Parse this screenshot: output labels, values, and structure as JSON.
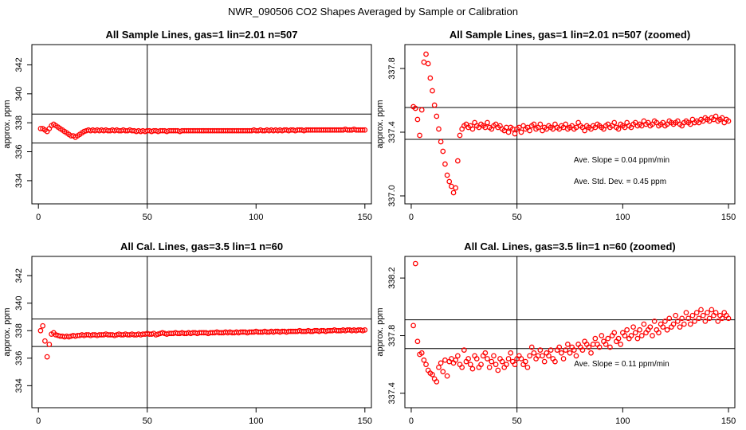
{
  "figure_title": "NWR_090506  CO2 Shapes Averaged by Sample or Calibration",
  "colors": {
    "points": "#ff0000",
    "lines": "#000000",
    "frame": "#000000"
  },
  "chart_data": [
    {
      "type": "scatter",
      "title": "All Sample Lines, gas=1 lin=2.01 n=507",
      "xlabel": "",
      "ylabel": "approx. ppm",
      "xlim": [
        -3,
        153
      ],
      "ylim": [
        332.4,
        343.4
      ],
      "xticks": [
        0,
        50,
        100,
        150
      ],
      "yticks": [
        334,
        336,
        338,
        340,
        342
      ],
      "hlines": [
        336.6,
        338.6
      ],
      "vlines": [
        50
      ],
      "grid": false,
      "annotations": [],
      "x": [
        1,
        2,
        3,
        4,
        5,
        6,
        7,
        8,
        9,
        10,
        11,
        12,
        13,
        14,
        15,
        16,
        17,
        18,
        19,
        20,
        21,
        22,
        23,
        24,
        25,
        26,
        27,
        28,
        29,
        30,
        31,
        32,
        33,
        34,
        35,
        36,
        37,
        38,
        39,
        40,
        41,
        42,
        43,
        44,
        45,
        46,
        47,
        48,
        49,
        50,
        51,
        52,
        53,
        54,
        55,
        56,
        57,
        58,
        59,
        60,
        61,
        62,
        63,
        64,
        65,
        66,
        67,
        68,
        69,
        70,
        71,
        72,
        73,
        74,
        75,
        76,
        77,
        78,
        79,
        80,
        81,
        82,
        83,
        84,
        85,
        86,
        87,
        88,
        89,
        90,
        91,
        92,
        93,
        94,
        95,
        96,
        97,
        98,
        99,
        100,
        101,
        102,
        103,
        104,
        105,
        106,
        107,
        108,
        109,
        110,
        111,
        112,
        113,
        114,
        115,
        116,
        117,
        118,
        119,
        120,
        121,
        122,
        123,
        124,
        125,
        126,
        127,
        128,
        129,
        130,
        131,
        132,
        133,
        134,
        135,
        136,
        137,
        138,
        139,
        140,
        141,
        142,
        143,
        144,
        145,
        146,
        147,
        148,
        149,
        150
      ],
      "y": [
        337.6,
        337.6,
        337.5,
        337.4,
        337.6,
        337.8,
        337.9,
        337.8,
        337.7,
        337.6,
        337.5,
        337.4,
        337.3,
        337.2,
        337.1,
        337.1,
        337.0,
        337.1,
        337.2,
        337.3,
        337.4,
        337.45,
        337.5,
        337.45,
        337.5,
        337.45,
        337.5,
        337.45,
        337.5,
        337.45,
        337.5,
        337.45,
        337.45,
        337.5,
        337.45,
        337.5,
        337.45,
        337.45,
        337.5,
        337.45,
        337.45,
        337.5,
        337.45,
        337.45,
        337.4,
        337.45,
        337.4,
        337.45,
        337.4,
        337.45,
        337.45,
        337.4,
        337.45,
        337.45,
        337.4,
        337.45,
        337.45,
        337.45,
        337.4,
        337.45,
        337.45,
        337.45,
        337.45,
        337.45,
        337.4,
        337.45,
        337.45,
        337.45,
        337.45,
        337.45,
        337.45,
        337.45,
        337.45,
        337.45,
        337.45,
        337.45,
        337.45,
        337.45,
        337.45,
        337.45,
        337.45,
        337.45,
        337.45,
        337.45,
        337.45,
        337.45,
        337.45,
        337.45,
        337.45,
        337.45,
        337.45,
        337.45,
        337.45,
        337.45,
        337.45,
        337.45,
        337.45,
        337.45,
        337.5,
        337.45,
        337.45,
        337.5,
        337.45,
        337.45,
        337.5,
        337.45,
        337.5,
        337.45,
        337.5,
        337.45,
        337.5,
        337.45,
        337.5,
        337.5,
        337.45,
        337.5,
        337.5,
        337.45,
        337.5,
        337.5,
        337.5,
        337.45,
        337.5,
        337.5,
        337.5,
        337.5,
        337.5,
        337.5,
        337.5,
        337.5,
        337.5,
        337.5,
        337.5,
        337.5,
        337.5,
        337.5,
        337.5,
        337.5,
        337.5,
        337.5,
        337.55,
        337.5,
        337.5,
        337.5,
        337.55,
        337.5,
        337.5,
        337.5,
        337.5,
        337.5
      ]
    },
    {
      "type": "scatter",
      "title": "All Sample Lines, gas=1 lin=2.01 n=507 (zoomed)",
      "xlabel": "",
      "ylabel": "approx. ppm",
      "xlim": [
        -3,
        153
      ],
      "ylim": [
        336.95,
        337.95
      ],
      "xticks": [
        0,
        50,
        100,
        150
      ],
      "yticks": [
        337.0,
        337.4,
        337.8
      ],
      "yticklabels": [
        "337.0",
        "337.4",
        "337.8"
      ],
      "hlines": [
        337.355,
        337.555
      ],
      "vlines": [
        50
      ],
      "grid": false,
      "annotations": [
        "Ave. Slope =  0.04  ppm/min",
        "Ave. Std. Dev. =  0.45  ppm"
      ],
      "x": [
        1,
        2,
        3,
        4,
        5,
        6,
        7,
        8,
        9,
        10,
        11,
        12,
        13,
        14,
        15,
        16,
        17,
        18,
        19,
        20,
        21,
        22,
        23,
        24,
        25,
        26,
        27,
        28,
        29,
        30,
        31,
        32,
        33,
        34,
        35,
        36,
        37,
        38,
        39,
        40,
        41,
        42,
        43,
        44,
        45,
        46,
        47,
        48,
        49,
        50,
        51,
        52,
        53,
        54,
        55,
        56,
        57,
        58,
        59,
        60,
        61,
        62,
        63,
        64,
        65,
        66,
        67,
        68,
        69,
        70,
        71,
        72,
        73,
        74,
        75,
        76,
        77,
        78,
        79,
        80,
        81,
        82,
        83,
        84,
        85,
        86,
        87,
        88,
        89,
        90,
        91,
        92,
        93,
        94,
        95,
        96,
        97,
        98,
        99,
        100,
        101,
        102,
        103,
        104,
        105,
        106,
        107,
        108,
        109,
        110,
        111,
        112,
        113,
        114,
        115,
        116,
        117,
        118,
        119,
        120,
        121,
        122,
        123,
        124,
        125,
        126,
        127,
        128,
        129,
        130,
        131,
        132,
        133,
        134,
        135,
        136,
        137,
        138,
        139,
        140,
        141,
        142,
        143,
        144,
        145,
        146,
        147,
        148,
        149,
        150
      ],
      "y": [
        337.56,
        337.55,
        337.48,
        337.38,
        337.54,
        337.84,
        337.89,
        337.83,
        337.74,
        337.66,
        337.57,
        337.5,
        337.42,
        337.34,
        337.28,
        337.2,
        337.13,
        337.09,
        337.06,
        337.02,
        337.05,
        337.22,
        337.38,
        337.42,
        337.44,
        337.45,
        337.43,
        337.44,
        337.42,
        337.46,
        337.44,
        337.43,
        337.45,
        337.44,
        337.43,
        337.46,
        337.43,
        337.42,
        337.44,
        337.45,
        337.43,
        337.44,
        337.42,
        337.41,
        337.43,
        337.4,
        337.43,
        337.42,
        337.39,
        337.42,
        337.43,
        337.4,
        337.44,
        337.42,
        337.43,
        337.41,
        337.44,
        337.45,
        337.42,
        337.43,
        337.45,
        337.41,
        337.43,
        337.42,
        337.44,
        337.43,
        337.42,
        337.45,
        337.43,
        337.42,
        337.44,
        337.43,
        337.45,
        337.42,
        337.43,
        337.44,
        337.42,
        337.43,
        337.46,
        337.44,
        337.43,
        337.41,
        337.44,
        337.43,
        337.42,
        337.44,
        337.43,
        337.45,
        337.44,
        337.43,
        337.42,
        337.44,
        337.45,
        337.43,
        337.44,
        337.46,
        337.43,
        337.42,
        337.45,
        337.44,
        337.43,
        337.46,
        337.44,
        337.43,
        337.45,
        337.46,
        337.44,
        337.45,
        337.44,
        337.47,
        337.45,
        337.46,
        337.44,
        337.45,
        337.47,
        337.46,
        337.44,
        337.45,
        337.46,
        337.44,
        337.45,
        337.47,
        337.46,
        337.45,
        337.46,
        337.47,
        337.45,
        337.44,
        337.46,
        337.47,
        337.46,
        337.45,
        337.48,
        337.46,
        337.47,
        337.46,
        337.48,
        337.47,
        337.49,
        337.48,
        337.47,
        337.49,
        337.48,
        337.5,
        337.47,
        337.48,
        337.49,
        337.46,
        337.48,
        337.47
      ]
    },
    {
      "type": "scatter",
      "title": "All Cal. Lines, gas=3.5 lin=1 n=60",
      "xlabel": "",
      "ylabel": "approx. ppm",
      "xlim": [
        -3,
        153
      ],
      "ylim": [
        332.4,
        343.4
      ],
      "xticks": [
        0,
        50,
        100,
        150
      ],
      "yticks": [
        334,
        336,
        338,
        340,
        342
      ],
      "hlines": [
        336.85,
        338.85
      ],
      "vlines": [
        50
      ],
      "grid": false,
      "annotations": [],
      "x": [
        1,
        2,
        3,
        4,
        5,
        6,
        7,
        8,
        9,
        10,
        11,
        12,
        13,
        14,
        15,
        16,
        17,
        18,
        19,
        20,
        21,
        22,
        23,
        24,
        25,
        26,
        27,
        28,
        29,
        30,
        31,
        32,
        33,
        34,
        35,
        36,
        37,
        38,
        39,
        40,
        41,
        42,
        43,
        44,
        45,
        46,
        47,
        48,
        49,
        50,
        51,
        52,
        53,
        54,
        55,
        56,
        57,
        58,
        59,
        60,
        61,
        62,
        63,
        64,
        65,
        66,
        67,
        68,
        69,
        70,
        71,
        72,
        73,
        74,
        75,
        76,
        77,
        78,
        79,
        80,
        81,
        82,
        83,
        84,
        85,
        86,
        87,
        88,
        89,
        90,
        91,
        92,
        93,
        94,
        95,
        96,
        97,
        98,
        99,
        100,
        101,
        102,
        103,
        104,
        105,
        106,
        107,
        108,
        109,
        110,
        111,
        112,
        113,
        114,
        115,
        116,
        117,
        118,
        119,
        120,
        121,
        122,
        123,
        124,
        125,
        126,
        127,
        128,
        129,
        130,
        131,
        132,
        133,
        134,
        135,
        136,
        137,
        138,
        139,
        140,
        141,
        142,
        143,
        144,
        145,
        146,
        147,
        148,
        149,
        150
      ],
      "y": [
        338.0,
        338.35,
        337.25,
        336.1,
        337.0,
        337.75,
        337.85,
        337.7,
        337.65,
        337.6,
        337.6,
        337.55,
        337.6,
        337.55,
        337.6,
        337.65,
        337.6,
        337.65,
        337.65,
        337.7,
        337.65,
        337.7,
        337.7,
        337.65,
        337.7,
        337.7,
        337.65,
        337.7,
        337.7,
        337.7,
        337.75,
        337.7,
        337.7,
        337.7,
        337.65,
        337.7,
        337.75,
        337.7,
        337.7,
        337.75,
        337.7,
        337.7,
        337.75,
        337.7,
        337.7,
        337.75,
        337.7,
        337.75,
        337.75,
        337.8,
        337.75,
        337.75,
        337.8,
        337.7,
        337.75,
        337.8,
        337.85,
        337.8,
        337.75,
        337.8,
        337.8,
        337.8,
        337.85,
        337.8,
        337.8,
        337.85,
        337.8,
        337.8,
        337.85,
        337.8,
        337.85,
        337.85,
        337.8,
        337.85,
        337.85,
        337.85,
        337.85,
        337.8,
        337.85,
        337.85,
        337.85,
        337.9,
        337.85,
        337.85,
        337.85,
        337.9,
        337.85,
        337.9,
        337.85,
        337.85,
        337.9,
        337.85,
        337.9,
        337.9,
        337.9,
        337.85,
        337.9,
        337.9,
        337.9,
        337.95,
        337.9,
        337.9,
        337.9,
        337.95,
        337.9,
        337.9,
        337.95,
        337.9,
        337.95,
        337.95,
        337.9,
        337.95,
        337.95,
        337.9,
        337.95,
        337.95,
        337.95,
        337.95,
        337.95,
        338.0,
        337.95,
        337.95,
        337.95,
        338.0,
        337.95,
        337.95,
        338.0,
        338.0,
        337.95,
        338.0,
        338.0,
        337.95,
        338.0,
        338.0,
        338.0,
        338.05,
        338.0,
        338.0,
        338.0,
        338.05,
        338.0,
        338.05,
        338.05,
        338.0,
        338.05,
        338.0,
        338.05,
        338.05,
        338.0,
        338.05
      ]
    },
    {
      "type": "scatter",
      "title": "All Cal. Lines, gas=3.5 lin=1 n=60 (zoomed)",
      "xlabel": "",
      "ylabel": "approx. ppm",
      "xlim": [
        -3,
        153
      ],
      "ylim": [
        337.3,
        338.35
      ],
      "xticks": [
        0,
        50,
        100,
        150
      ],
      "yticks": [
        337.4,
        337.8,
        338.2
      ],
      "yticklabels": [
        "337.4",
        "337.8",
        "338.2"
      ],
      "hlines": [
        337.71,
        337.91
      ],
      "vlines": [
        50
      ],
      "grid": false,
      "annotations": [
        "Ave. Slope =  0.11  ppm/min"
      ],
      "x": [
        1,
        2,
        3,
        4,
        5,
        6,
        7,
        8,
        9,
        10,
        11,
        12,
        13,
        14,
        15,
        16,
        17,
        18,
        19,
        20,
        21,
        22,
        23,
        24,
        25,
        26,
        27,
        28,
        29,
        30,
        31,
        32,
        33,
        34,
        35,
        36,
        37,
        38,
        39,
        40,
        41,
        42,
        43,
        44,
        45,
        46,
        47,
        48,
        49,
        50,
        51,
        52,
        53,
        54,
        55,
        56,
        57,
        58,
        59,
        60,
        61,
        62,
        63,
        64,
        65,
        66,
        67,
        68,
        69,
        70,
        71,
        72,
        73,
        74,
        75,
        76,
        77,
        78,
        79,
        80,
        81,
        82,
        83,
        84,
        85,
        86,
        87,
        88,
        89,
        90,
        91,
        92,
        93,
        94,
        95,
        96,
        97,
        98,
        99,
        100,
        101,
        102,
        103,
        104,
        105,
        106,
        107,
        108,
        109,
        110,
        111,
        112,
        113,
        114,
        115,
        116,
        117,
        118,
        119,
        120,
        121,
        122,
        123,
        124,
        125,
        126,
        127,
        128,
        129,
        130,
        131,
        132,
        133,
        134,
        135,
        136,
        137,
        138,
        139,
        140,
        141,
        142,
        143,
        144,
        145,
        146,
        147,
        148,
        149,
        150
      ],
      "y": [
        337.87,
        338.3,
        337.76,
        337.67,
        337.68,
        337.63,
        337.6,
        337.56,
        337.54,
        337.53,
        337.5,
        337.48,
        337.58,
        337.61,
        337.55,
        337.63,
        337.52,
        337.62,
        337.64,
        337.61,
        337.63,
        337.66,
        337.6,
        337.58,
        337.7,
        337.62,
        337.64,
        337.6,
        337.57,
        337.66,
        337.64,
        337.58,
        337.6,
        337.66,
        337.68,
        337.64,
        337.58,
        337.62,
        337.66,
        337.6,
        337.56,
        337.64,
        337.62,
        337.58,
        337.6,
        337.64,
        337.68,
        337.62,
        337.6,
        337.64,
        337.66,
        337.64,
        337.6,
        337.62,
        337.58,
        337.66,
        337.72,
        337.68,
        337.64,
        337.66,
        337.7,
        337.66,
        337.62,
        337.68,
        337.66,
        337.7,
        337.64,
        337.62,
        337.7,
        337.72,
        337.68,
        337.64,
        337.7,
        337.74,
        337.68,
        337.72,
        337.7,
        337.66,
        337.74,
        337.72,
        337.7,
        337.76,
        337.74,
        337.72,
        337.68,
        337.74,
        337.78,
        337.74,
        337.72,
        337.8,
        337.76,
        337.74,
        337.78,
        337.72,
        337.8,
        337.82,
        337.76,
        337.78,
        337.74,
        337.82,
        337.8,
        337.84,
        337.78,
        337.8,
        337.86,
        337.82,
        337.78,
        337.84,
        337.8,
        337.88,
        337.82,
        337.84,
        337.86,
        337.8,
        337.9,
        337.84,
        337.82,
        337.88,
        337.86,
        337.9,
        337.84,
        337.92,
        337.86,
        337.88,
        337.94,
        337.9,
        337.86,
        337.92,
        337.88,
        337.96,
        337.92,
        337.88,
        337.94,
        337.9,
        337.96,
        337.92,
        337.98,
        337.94,
        337.9,
        337.96,
        337.92,
        337.98,
        337.94,
        337.96,
        337.9,
        337.94,
        337.92,
        337.96,
        337.94,
        337.92
      ]
    }
  ]
}
